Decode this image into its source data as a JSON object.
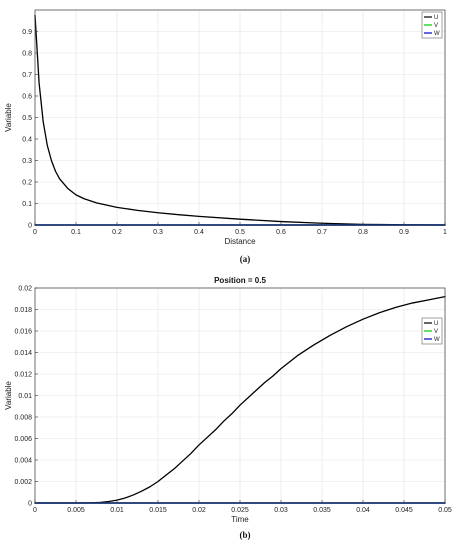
{
  "chart_data": [
    {
      "type": "line",
      "caption": "(a)",
      "title": "",
      "xlabel": "Distance",
      "ylabel": "Variable",
      "xlim": [
        0,
        1
      ],
      "ylim": [
        0,
        1
      ],
      "xticks": [
        0,
        0.1,
        0.2,
        0.3,
        0.4,
        0.5,
        0.6,
        0.7,
        0.8,
        0.9,
        1
      ],
      "xtick_labels": [
        "0",
        "0.1",
        "0.2",
        "0.3",
        "0.4",
        "0.5",
        "0.6",
        "0.7",
        "0.8",
        "0.9",
        "1"
      ],
      "yticks": [
        0,
        0.1,
        0.2,
        0.3,
        0.4,
        0.5,
        0.6,
        0.7,
        0.8,
        0.9
      ],
      "ytick_labels": [
        "0",
        "0.1",
        "0.2",
        "0.3",
        "0.4",
        "0.5",
        "0.6",
        "0.7",
        "0.8",
        "0.9"
      ],
      "grid": true,
      "legend": {
        "position": "top-right",
        "entries": [
          "U",
          "V",
          "W"
        ]
      },
      "series": [
        {
          "name": "U",
          "color": "#000000",
          "x": [
            0,
            0.005,
            0.01,
            0.02,
            0.03,
            0.04,
            0.05,
            0.06,
            0.08,
            0.1,
            0.12,
            0.15,
            0.2,
            0.25,
            0.3,
            0.35,
            0.4,
            0.5,
            0.6,
            0.7,
            0.8,
            0.9,
            1
          ],
          "y": [
            0.975,
            0.82,
            0.66,
            0.48,
            0.37,
            0.3,
            0.25,
            0.215,
            0.17,
            0.14,
            0.122,
            0.103,
            0.082,
            0.068,
            0.057,
            0.048,
            0.04,
            0.027,
            0.016,
            0.008,
            0.003,
            0.001,
            0
          ]
        },
        {
          "name": "V",
          "color": "#00cc00",
          "x": [
            0,
            1
          ],
          "y": [
            0,
            0
          ]
        },
        {
          "name": "W",
          "color": "#0000cc",
          "x": [
            0,
            1
          ],
          "y": [
            0,
            0
          ]
        }
      ]
    },
    {
      "type": "line",
      "caption": "(b)",
      "title": "Position = 0.5",
      "xlabel": "Time",
      "ylabel": "Variable",
      "xlim": [
        0,
        0.05
      ],
      "ylim": [
        0,
        0.02
      ],
      "xticks": [
        0,
        0.005,
        0.01,
        0.015,
        0.02,
        0.025,
        0.03,
        0.035,
        0.04,
        0.045,
        0.05
      ],
      "xtick_labels": [
        "0",
        "0.005",
        "0.01",
        "0.015",
        "0.02",
        "0.025",
        "0.03",
        "0.035",
        "0.04",
        "0.045",
        "0.05"
      ],
      "yticks": [
        0,
        0.002,
        0.004,
        0.006,
        0.008,
        0.01,
        0.012,
        0.014,
        0.016,
        0.018,
        0.02
      ],
      "ytick_labels": [
        "0",
        "0.002",
        "0.004",
        "0.006",
        "0.008",
        "0.01",
        "0.012",
        "0.014",
        "0.016",
        "0.018",
        "0.02"
      ],
      "grid": true,
      "legend": {
        "position": "right",
        "entries": [
          "U",
          "V",
          "W"
        ]
      },
      "series": [
        {
          "name": "U",
          "color": "#000000",
          "x": [
            0,
            0.005,
            0.007,
            0.008,
            0.009,
            0.01,
            0.011,
            0.012,
            0.013,
            0.014,
            0.015,
            0.016,
            0.017,
            0.018,
            0.019,
            0.02,
            0.021,
            0.022,
            0.023,
            0.024,
            0.025,
            0.026,
            0.027,
            0.028,
            0.029,
            0.03,
            0.032,
            0.034,
            0.036,
            0.038,
            0.04,
            0.042,
            0.044,
            0.046,
            0.048,
            0.05
          ],
          "y": [
            0,
            0,
            2e-05,
            6e-05,
            0.00014,
            0.00027,
            0.00047,
            0.00075,
            0.0011,
            0.0015,
            0.002,
            0.0026,
            0.0032,
            0.0039,
            0.0046,
            0.0054,
            0.0061,
            0.0068,
            0.0076,
            0.0083,
            0.0091,
            0.0098,
            0.0105,
            0.0112,
            0.0118,
            0.0125,
            0.0137,
            0.0147,
            0.0156,
            0.0164,
            0.0171,
            0.0177,
            0.0182,
            0.0186,
            0.0189,
            0.0192
          ]
        },
        {
          "name": "V",
          "color": "#00cc00",
          "x": [
            0,
            0.05
          ],
          "y": [
            0,
            0
          ]
        },
        {
          "name": "W",
          "color": "#0000cc",
          "x": [
            0,
            0.05
          ],
          "y": [
            0,
            0
          ]
        }
      ]
    }
  ]
}
